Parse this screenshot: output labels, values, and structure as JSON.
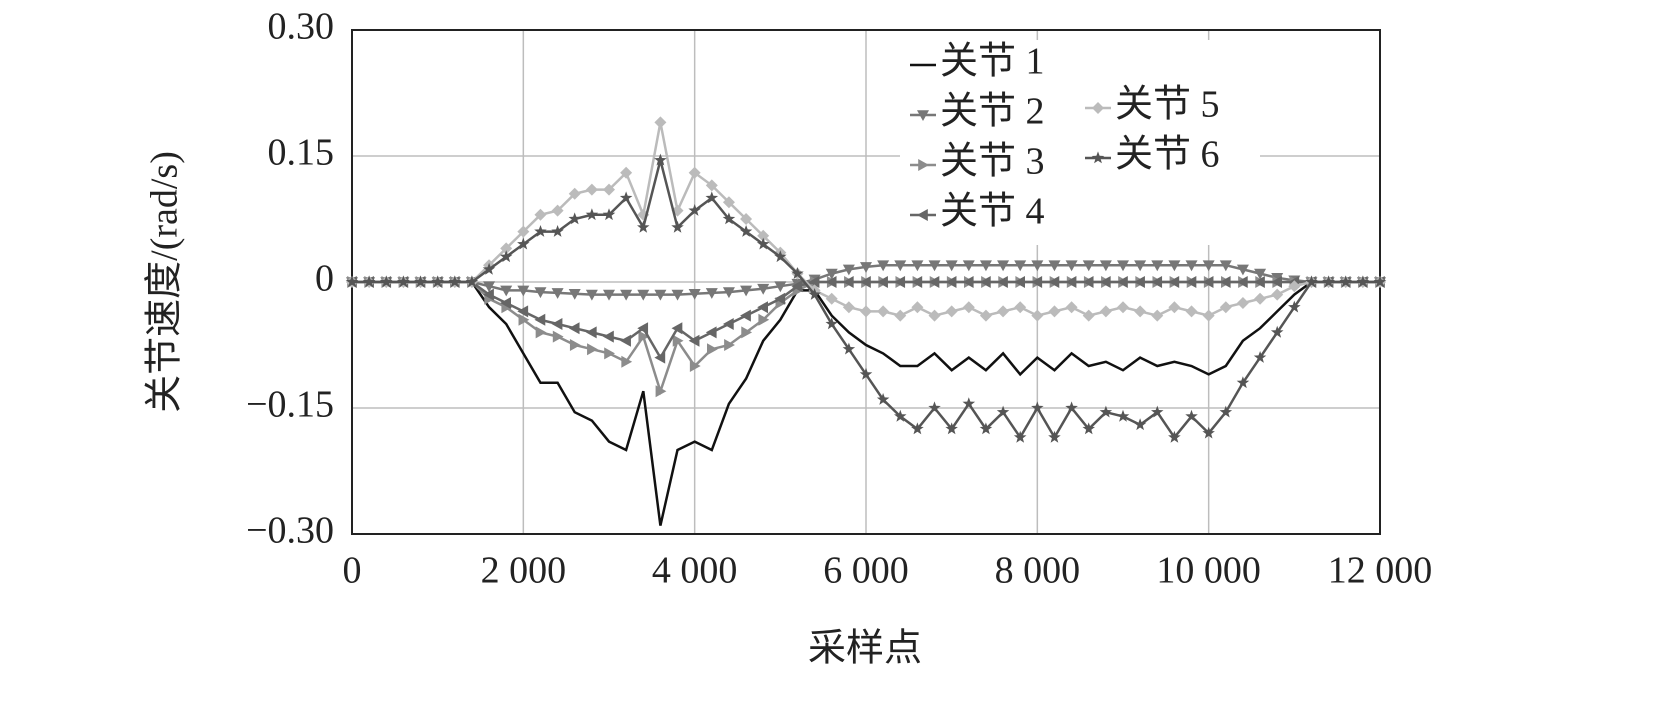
{
  "chart_data": {
    "type": "line",
    "xlabel": "采样点",
    "ylabel": "关节速度/(rad/s)",
    "xlim": [
      0,
      12000
    ],
    "ylim": [
      -0.3,
      0.3
    ],
    "xticks": [
      0,
      {
        "value": 2000,
        "label": "2 000"
      },
      {
        "value": 4000,
        "label": "4 000"
      },
      {
        "value": 6000,
        "label": "6 000"
      },
      {
        "value": 8000,
        "label": "8 000"
      },
      {
        "value": 10000,
        "label": "10 000"
      },
      {
        "value": 12000,
        "label": "12 000"
      }
    ],
    "yticks": [
      {
        "value": 0.3,
        "label": "0.30"
      },
      {
        "value": 0.15,
        "label": "0.15"
      },
      0,
      {
        "value": -0.15,
        "label": "−0.15"
      },
      {
        "value": -0.3,
        "label": "−0.30"
      }
    ],
    "grid": true,
    "x": [
      0,
      200,
      400,
      600,
      800,
      1000,
      1200,
      1400,
      1600,
      1800,
      2000,
      2200,
      2400,
      2600,
      2800,
      3000,
      3200,
      3400,
      3600,
      3800,
      4000,
      4200,
      4400,
      4600,
      4800,
      5000,
      5200,
      5400,
      5600,
      5800,
      6000,
      6200,
      6400,
      6600,
      6800,
      7000,
      7200,
      7400,
      7600,
      7800,
      8000,
      8200,
      8400,
      8600,
      8800,
      9000,
      9200,
      9400,
      9600,
      9800,
      10000,
      10200,
      10400,
      10600,
      10800,
      11000,
      11200,
      11400,
      11600,
      11800,
      12000
    ],
    "series": [
      {
        "name": "关节 1",
        "color": "#111111",
        "marker": "none",
        "values": [
          0,
          0,
          0,
          0,
          0,
          0,
          0,
          0,
          -0.03,
          -0.05,
          -0.085,
          -0.12,
          -0.12,
          -0.155,
          -0.165,
          -0.19,
          -0.2,
          -0.13,
          -0.29,
          -0.2,
          -0.19,
          -0.2,
          -0.145,
          -0.115,
          -0.07,
          -0.045,
          -0.01,
          -0.01,
          -0.04,
          -0.06,
          -0.075,
          -0.085,
          -0.1,
          -0.1,
          -0.085,
          -0.105,
          -0.09,
          -0.105,
          -0.085,
          -0.11,
          -0.09,
          -0.105,
          -0.085,
          -0.1,
          -0.095,
          -0.105,
          -0.09,
          -0.1,
          -0.095,
          -0.1,
          -0.11,
          -0.1,
          -0.07,
          -0.055,
          -0.035,
          -0.015,
          0,
          0,
          0,
          0,
          0
        ]
      },
      {
        "name": "关节 2",
        "color": "#777777",
        "marker": "down",
        "values": [
          0,
          0,
          0,
          0,
          0,
          0,
          0,
          0,
          -0.005,
          -0.01,
          -0.01,
          -0.012,
          -0.013,
          -0.014,
          -0.015,
          -0.015,
          -0.015,
          -0.015,
          -0.015,
          -0.015,
          -0.014,
          -0.013,
          -0.012,
          -0.01,
          -0.008,
          -0.005,
          -0.002,
          0.003,
          0.01,
          0.015,
          0.018,
          0.02,
          0.02,
          0.02,
          0.02,
          0.02,
          0.02,
          0.02,
          0.02,
          0.02,
          0.02,
          0.02,
          0.02,
          0.02,
          0.02,
          0.02,
          0.02,
          0.02,
          0.02,
          0.02,
          0.02,
          0.02,
          0.015,
          0.01,
          0.005,
          0.002,
          0,
          0,
          0,
          0,
          0
        ]
      },
      {
        "name": "关节 3",
        "color": "#8c8c8c",
        "marker": "right",
        "values": [
          0,
          0,
          0,
          0,
          0,
          0,
          0,
          0,
          -0.02,
          -0.03,
          -0.045,
          -0.06,
          -0.065,
          -0.075,
          -0.08,
          -0.085,
          -0.095,
          -0.065,
          -0.13,
          -0.07,
          -0.1,
          -0.08,
          -0.075,
          -0.06,
          -0.045,
          -0.025,
          -0.01,
          0,
          0,
          0,
          0,
          0,
          0,
          0,
          0,
          0,
          0,
          0,
          0,
          0,
          0,
          0,
          0,
          0,
          0,
          0,
          0,
          0,
          0,
          0,
          0,
          0,
          0,
          0,
          0,
          0,
          0,
          0,
          0,
          0,
          0
        ]
      },
      {
        "name": "关节 4",
        "color": "#666666",
        "marker": "left",
        "values": [
          0,
          0,
          0,
          0,
          0,
          0,
          0,
          0,
          -0.015,
          -0.025,
          -0.035,
          -0.045,
          -0.05,
          -0.055,
          -0.06,
          -0.065,
          -0.07,
          -0.055,
          -0.09,
          -0.055,
          -0.07,
          -0.06,
          -0.05,
          -0.04,
          -0.03,
          -0.02,
          -0.005,
          0,
          0,
          0,
          0,
          0,
          0,
          0,
          0,
          0,
          0,
          0,
          0,
          0,
          0,
          0,
          0,
          0,
          0,
          0,
          0,
          0,
          0,
          0,
          0,
          0,
          0,
          0,
          0,
          0,
          0,
          0,
          0,
          0,
          0
        ]
      },
      {
        "name": "关节 5",
        "color": "#bbbbbb",
        "marker": "diamond",
        "values": [
          0,
          0,
          0,
          0,
          0,
          0,
          0,
          0,
          0.02,
          0.04,
          0.06,
          0.08,
          0.085,
          0.105,
          0.11,
          0.11,
          0.13,
          0.08,
          0.19,
          0.085,
          0.13,
          0.115,
          0.095,
          0.075,
          0.055,
          0.035,
          0.01,
          -0.01,
          -0.02,
          -0.03,
          -0.035,
          -0.035,
          -0.04,
          -0.03,
          -0.04,
          -0.035,
          -0.03,
          -0.04,
          -0.035,
          -0.03,
          -0.04,
          -0.035,
          -0.03,
          -0.04,
          -0.035,
          -0.03,
          -0.035,
          -0.04,
          -0.03,
          -0.035,
          -0.04,
          -0.03,
          -0.025,
          -0.02,
          -0.015,
          -0.005,
          0,
          0,
          0,
          0,
          0
        ]
      },
      {
        "name": "关节 6",
        "color": "#555555",
        "marker": "star",
        "values": [
          0,
          0,
          0,
          0,
          0,
          0,
          0,
          0,
          0.015,
          0.03,
          0.045,
          0.06,
          0.06,
          0.075,
          0.08,
          0.08,
          0.1,
          0.065,
          0.145,
          0.065,
          0.085,
          0.1,
          0.075,
          0.06,
          0.045,
          0.03,
          0.01,
          -0.015,
          -0.05,
          -0.08,
          -0.11,
          -0.14,
          -0.16,
          -0.175,
          -0.15,
          -0.175,
          -0.145,
          -0.175,
          -0.155,
          -0.185,
          -0.15,
          -0.185,
          -0.15,
          -0.175,
          -0.155,
          -0.16,
          -0.17,
          -0.155,
          -0.185,
          -0.16,
          -0.18,
          -0.155,
          -0.12,
          -0.09,
          -0.06,
          -0.03,
          0,
          0,
          0,
          0,
          0
        ]
      }
    ]
  }
}
